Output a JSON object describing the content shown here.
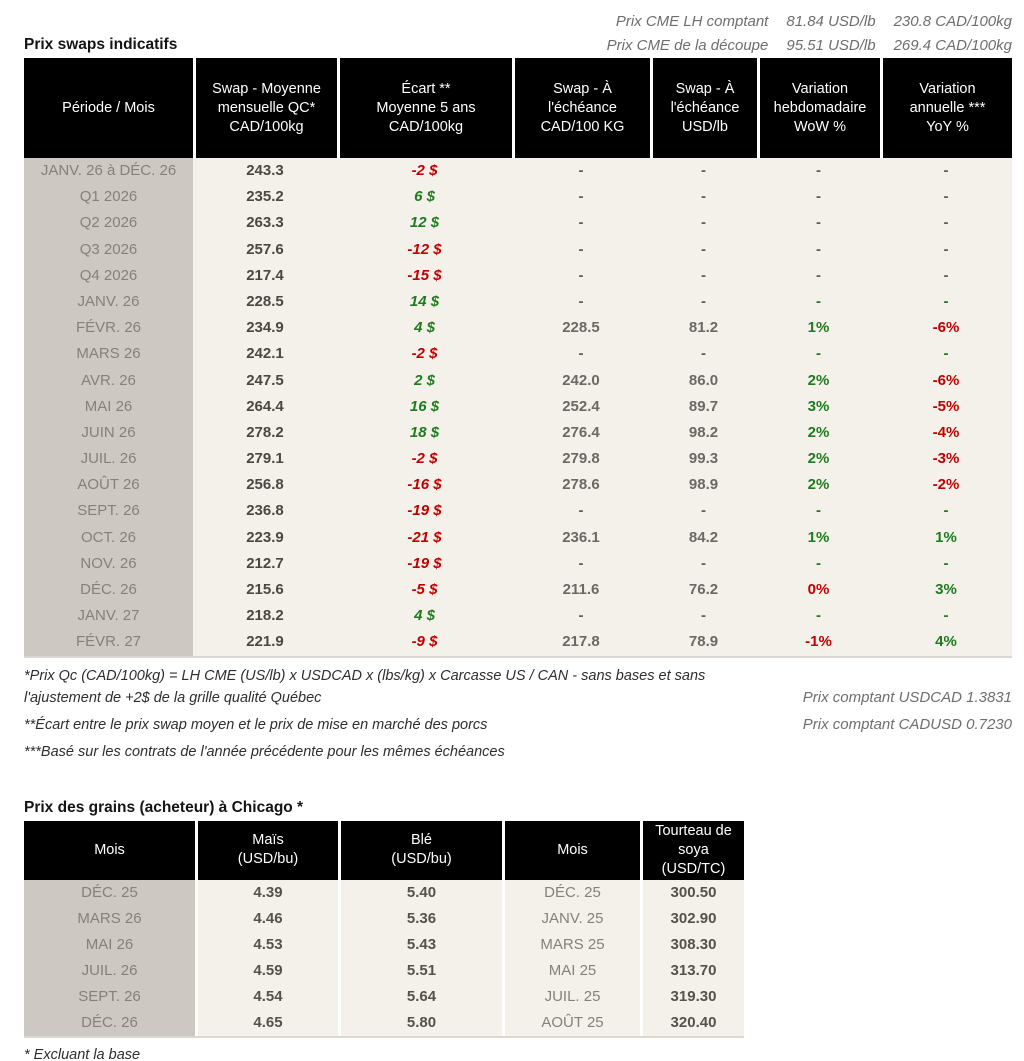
{
  "colors": {
    "red": "#c00000",
    "green": "#1e7c1e",
    "gray": "#5f5d58",
    "num_gray": "#6b6965",
    "num_dark": "#4a4843"
  },
  "top": {
    "title": "Prix swaps indicatifs",
    "cme_lines": [
      {
        "label": "Prix CME LH comptant",
        "usd": "81.84 USD/lb",
        "cad": "230.8 CAD/100kg"
      },
      {
        "label": "Prix CME de la découpe",
        "usd": "95.51 USD/lb",
        "cad": "269.4 CAD/100kg"
      }
    ]
  },
  "swaps_table": {
    "columns": [
      "Période / Mois",
      "Swap - Moyenne\nmensuelle QC*\nCAD/100kg",
      "Écart **\nMoyenne 5 ans\nCAD/100kg",
      "Swap - À\nl'échéance\nCAD/100 KG",
      "Swap - À\nl'échéance\nUSD/lb",
      "Variation\nhebdomadaire\nWoW %",
      "Variation\nannuelle ***\nYoY %"
    ],
    "rows": [
      {
        "period": "JANV. 26 à  DÉC. 26",
        "swap_qc": "243.3",
        "ecart": "-2 $",
        "ecart_color": "red",
        "swap_cad": "-",
        "swap_usd": "-",
        "wow": "-",
        "wow_color": "gray",
        "yoy": "-",
        "yoy_color": "gray"
      },
      {
        "period": "Q1 2026",
        "swap_qc": "235.2",
        "ecart": "6 $",
        "ecart_color": "green",
        "swap_cad": "-",
        "swap_usd": "-",
        "wow": "-",
        "wow_color": "gray",
        "yoy": "-",
        "yoy_color": "gray"
      },
      {
        "period": "Q2 2026",
        "swap_qc": "263.3",
        "ecart": "12 $",
        "ecart_color": "green",
        "swap_cad": "-",
        "swap_usd": "-",
        "wow": "-",
        "wow_color": "gray",
        "yoy": "-",
        "yoy_color": "gray"
      },
      {
        "period": "Q3 2026",
        "swap_qc": "257.6",
        "ecart": "-12 $",
        "ecart_color": "red",
        "swap_cad": "-",
        "swap_usd": "-",
        "wow": "-",
        "wow_color": "gray",
        "yoy": "-",
        "yoy_color": "gray"
      },
      {
        "period": "Q4 2026",
        "swap_qc": "217.4",
        "ecart": "-15 $",
        "ecart_color": "red",
        "swap_cad": "-",
        "swap_usd": "-",
        "wow": "-",
        "wow_color": "gray",
        "yoy": "-",
        "yoy_color": "gray"
      },
      {
        "period": "JANV. 26",
        "swap_qc": "228.5",
        "ecart": "14 $",
        "ecart_color": "green",
        "swap_cad": "-",
        "swap_usd": "-",
        "wow": "-",
        "wow_color": "green",
        "yoy": "-",
        "yoy_color": "green"
      },
      {
        "period": "FÉVR. 26",
        "swap_qc": "234.9",
        "ecart": "4 $",
        "ecart_color": "green",
        "swap_cad": "228.5",
        "swap_usd": "81.2",
        "wow": "1%",
        "wow_color": "green",
        "yoy": "-6%",
        "yoy_color": "red"
      },
      {
        "period": "MARS 26",
        "swap_qc": "242.1",
        "ecart": "-2 $",
        "ecart_color": "red",
        "swap_cad": "-",
        "swap_usd": "-",
        "wow": "-",
        "wow_color": "green",
        "yoy": "-",
        "yoy_color": "green"
      },
      {
        "period": "AVR. 26",
        "swap_qc": "247.5",
        "ecart": "2 $",
        "ecart_color": "green",
        "swap_cad": "242.0",
        "swap_usd": "86.0",
        "wow": "2%",
        "wow_color": "green",
        "yoy": "-6%",
        "yoy_color": "red"
      },
      {
        "period": "MAI 26",
        "swap_qc": "264.4",
        "ecart": "16 $",
        "ecart_color": "green",
        "swap_cad": "252.4",
        "swap_usd": "89.7",
        "wow": "3%",
        "wow_color": "green",
        "yoy": "-5%",
        "yoy_color": "red"
      },
      {
        "period": "JUIN 26",
        "swap_qc": "278.2",
        "ecart": "18 $",
        "ecart_color": "green",
        "swap_cad": "276.4",
        "swap_usd": "98.2",
        "wow": "2%",
        "wow_color": "green",
        "yoy": "-4%",
        "yoy_color": "red"
      },
      {
        "period": "JUIL. 26",
        "swap_qc": "279.1",
        "ecart": "-2 $",
        "ecart_color": "red",
        "swap_cad": "279.8",
        "swap_usd": "99.3",
        "wow": "2%",
        "wow_color": "green",
        "yoy": "-3%",
        "yoy_color": "red"
      },
      {
        "period": "AOÛT 26",
        "swap_qc": "256.8",
        "ecart": "-16 $",
        "ecart_color": "red",
        "swap_cad": "278.6",
        "swap_usd": "98.9",
        "wow": "2%",
        "wow_color": "green",
        "yoy": "-2%",
        "yoy_color": "red"
      },
      {
        "period": "SEPT. 26",
        "swap_qc": "236.8",
        "ecart": "-19 $",
        "ecart_color": "red",
        "swap_cad": "-",
        "swap_usd": "-",
        "wow": "-",
        "wow_color": "green",
        "yoy": "-",
        "yoy_color": "green"
      },
      {
        "period": "OCT. 26",
        "swap_qc": "223.9",
        "ecart": "-21 $",
        "ecart_color": "red",
        "swap_cad": "236.1",
        "swap_usd": "84.2",
        "wow": "1%",
        "wow_color": "green",
        "yoy": "1%",
        "yoy_color": "green"
      },
      {
        "period": "NOV. 26",
        "swap_qc": "212.7",
        "ecart": "-19 $",
        "ecart_color": "red",
        "swap_cad": "-",
        "swap_usd": "-",
        "wow": "-",
        "wow_color": "green",
        "yoy": "-",
        "yoy_color": "green"
      },
      {
        "period": "DÉC. 26",
        "swap_qc": "215.6",
        "ecart": "-5 $",
        "ecart_color": "red",
        "swap_cad": "211.6",
        "swap_usd": "76.2",
        "wow": "0%",
        "wow_color": "red",
        "yoy": "3%",
        "yoy_color": "green"
      },
      {
        "period": "JANV. 27",
        "swap_qc": "218.2",
        "ecart": "4 $",
        "ecart_color": "green",
        "swap_cad": "-",
        "swap_usd": "-",
        "wow": "-",
        "wow_color": "green",
        "yoy": "-",
        "yoy_color": "green"
      },
      {
        "period": "FÉVR. 27",
        "swap_qc": "221.9",
        "ecart": "-9 $",
        "ecart_color": "red",
        "swap_cad": "217.8",
        "swap_usd": "78.9",
        "wow": "-1%",
        "wow_color": "red",
        "yoy": "4%",
        "yoy_color": "green"
      }
    ]
  },
  "footnotes": {
    "note1": "*Prix Qc (CAD/100kg) = LH CME (US/lb) x USDCAD x (lbs/kg) x Carcasse US / CAN - sans bases et sans l'ajustement de +2$ de la grille qualité Québec",
    "note2": "**Écart entre le prix swap moyen et le prix de mise en marché des porcs",
    "note3": "***Basé sur les contrats de l'année précédente pour les mêmes échéances",
    "fx1": "Prix comptant USDCAD 1.3831",
    "fx2": "Prix comptant CADUSD 0.7230"
  },
  "grains": {
    "title": "Prix des grains (acheteur) à Chicago *",
    "columns": [
      "Mois",
      "Maïs\n(USD/bu)",
      "Blé\n(USD/bu)",
      "Mois",
      "Tourteau de\nsoya\n(USD/TC)"
    ],
    "rows": [
      {
        "month1": "DÉC. 25",
        "mais": "4.39",
        "ble": "5.40",
        "month2": "DÉC. 25",
        "tourteau": "300.50"
      },
      {
        "month1": "MARS 26",
        "mais": "4.46",
        "ble": "5.36",
        "month2": "JANV. 25",
        "tourteau": "302.90"
      },
      {
        "month1": "MAI 26",
        "mais": "4.53",
        "ble": "5.43",
        "month2": "MARS 25",
        "tourteau": "308.30"
      },
      {
        "month1": "JUIL. 26",
        "mais": "4.59",
        "ble": "5.51",
        "month2": "MAI 25",
        "tourteau": "313.70"
      },
      {
        "month1": "SEPT. 26",
        "mais": "4.54",
        "ble": "5.64",
        "month2": "JUIL. 25",
        "tourteau": "319.30"
      },
      {
        "month1": "DÉC. 26",
        "mais": "4.65",
        "ble": "5.80",
        "month2": "AOÛT 25",
        "tourteau": "320.40"
      }
    ],
    "footnote": "* Excluant la base"
  }
}
